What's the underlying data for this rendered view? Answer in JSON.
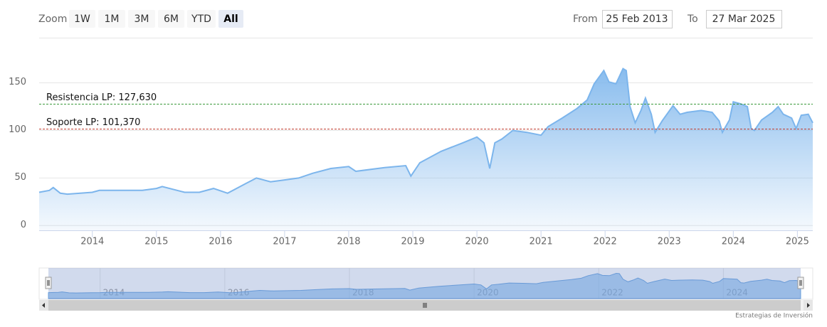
{
  "chart_data": {
    "type": "area",
    "x": [
      2013.17,
      2013.33,
      2013.39,
      2013.5,
      2013.61,
      2014,
      2014.11,
      2014.78,
      2015,
      2015.09,
      2015.44,
      2015.67,
      2015.89,
      2016.11,
      2016.39,
      2016.56,
      2016.78,
      2017,
      2017.22,
      2017.44,
      2017.72,
      2018,
      2018.11,
      2018.56,
      2018.89,
      2018.97,
      2019.11,
      2019.44,
      2019.78,
      2020,
      2020.11,
      2020.2,
      2020.28,
      2020.39,
      2020.56,
      2020.78,
      2021,
      2021.11,
      2021.33,
      2021.56,
      2021.72,
      2021.83,
      2021.98,
      2022.06,
      2022.17,
      2022.28,
      2022.33,
      2022.39,
      2022.47,
      2022.56,
      2022.63,
      2022.72,
      2022.78,
      2022.89,
      2023.06,
      2023.17,
      2023.28,
      2023.5,
      2023.67,
      2023.78,
      2023.83,
      2023.94,
      2024,
      2024.11,
      2024.22,
      2024.28,
      2024.33,
      2024.44,
      2024.61,
      2024.7,
      2024.78,
      2024.91,
      2024.98,
      2025.06,
      2025.17,
      2025.24
    ],
    "values": [
      35,
      37,
      40,
      34,
      33,
      35,
      37,
      37,
      39,
      41,
      35,
      35,
      39,
      34,
      44,
      50,
      46,
      48,
      50,
      55,
      60,
      62,
      57,
      61,
      63,
      52,
      66,
      78,
      87,
      93,
      87,
      60,
      87,
      91,
      100,
      98,
      95,
      104,
      113,
      123,
      132,
      149,
      163,
      151,
      149,
      165,
      163,
      125,
      108,
      121,
      134,
      117,
      98,
      110,
      126,
      117,
      119,
      121,
      119,
      110,
      98,
      111,
      130,
      128,
      125,
      102,
      100,
      111,
      119,
      125,
      117,
      113,
      102,
      116,
      117,
      108
    ],
    "color": "#7cb5ec",
    "xlim": [
      2013.17,
      2025.24
    ],
    "xticks": [
      2014,
      2015,
      2016,
      2017,
      2018,
      2019,
      2020,
      2021,
      2022,
      2023,
      2024,
      2025
    ],
    "ylim": [
      -5,
      196
    ],
    "yticks": [
      0,
      50,
      100,
      150
    ],
    "grid": true,
    "plot_lines": [
      {
        "value": 127.63,
        "label": "Resistencia LP: 127,630",
        "color": "#3c9a3c"
      },
      {
        "value": 101.37,
        "label": "Soporte LP: 101,370",
        "color": "#c0392b"
      }
    ],
    "navigator": {
      "xticks": [
        2014,
        2016,
        2018,
        2020,
        2022,
        2024
      ]
    }
  },
  "range_selector": {
    "zoom_label": "Zoom",
    "buttons": [
      "1W",
      "1M",
      "3M",
      "6M",
      "YTD",
      "All"
    ],
    "selected": "All",
    "from_label": "From",
    "from": "25 Feb 2013",
    "to_label": "To",
    "to": "27 Mar 2025"
  },
  "credits": "Estrategias de Inversión"
}
